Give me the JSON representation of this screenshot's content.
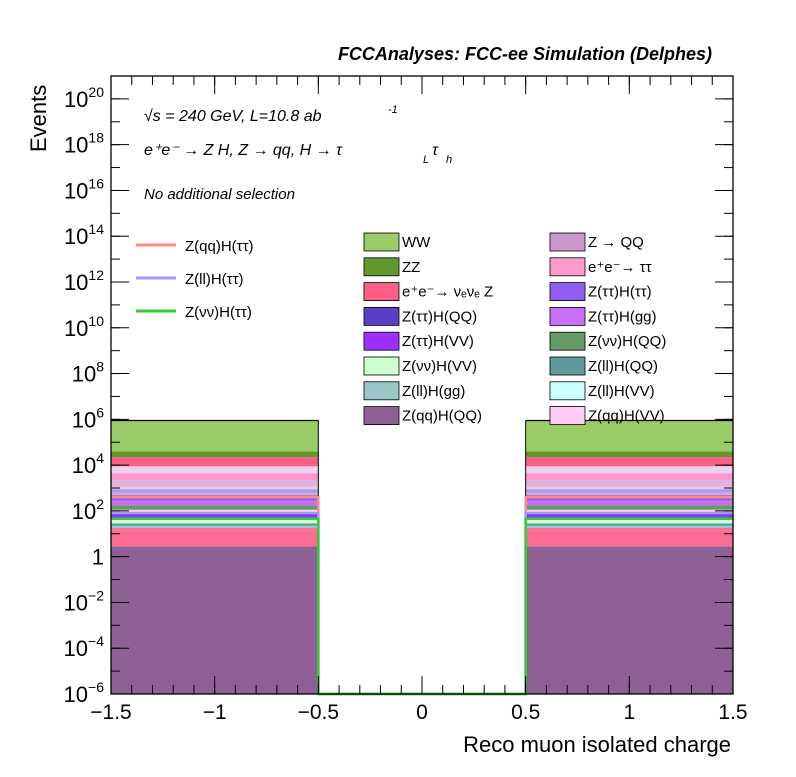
{
  "header": {
    "title": "FCCAnalyses: FCC-ee Simulation (Delphes)"
  },
  "annotations": {
    "energy_line": "√s = 240 GeV, L=10.8 ab",
    "energy_sup": "-1",
    "process": "e⁺e⁻ → Z H, Z → qq, H → τ",
    "process_sub1": "L",
    "process_tau": "τ",
    "process_sub2": "h",
    "selection": "No additional selection"
  },
  "chart_data": {
    "type": "histogram",
    "title": "",
    "xlabel": "Reco muon isolated charge",
    "ylabel": "Events",
    "x_range": [
      -1.5,
      1.5
    ],
    "y_range_log10": [
      -6,
      21
    ],
    "y_scale": "log",
    "x_ticks": [
      {
        "v": -1.5,
        "label": "−1.5"
      },
      {
        "v": -1,
        "label": "−1"
      },
      {
        "v": -0.5,
        "label": "−0.5"
      },
      {
        "v": 0,
        "label": "0"
      },
      {
        "v": 0.5,
        "label": "0.5"
      },
      {
        "v": 1,
        "label": "1"
      },
      {
        "v": 1.5,
        "label": "1.5"
      }
    ],
    "y_ticks": [
      {
        "e": -6,
        "base": "10",
        "sup": "−6"
      },
      {
        "e": -4,
        "base": "10",
        "sup": "−4"
      },
      {
        "e": -2,
        "base": "10",
        "sup": "−2"
      },
      {
        "e": 0,
        "base": "1",
        "sup": ""
      },
      {
        "e": 2,
        "base": "10",
        "sup": "2"
      },
      {
        "e": 4,
        "base": "10",
        "sup": "4"
      },
      {
        "e": 6,
        "base": "10",
        "sup": "6"
      },
      {
        "e": 8,
        "base": "10",
        "sup": "8"
      },
      {
        "e": 10,
        "base": "10",
        "sup": "10"
      },
      {
        "e": 12,
        "base": "10",
        "sup": "12"
      },
      {
        "e": 14,
        "base": "10",
        "sup": "14"
      },
      {
        "e": 16,
        "base": "10",
        "sup": "16"
      },
      {
        "e": 18,
        "base": "10",
        "sup": "18"
      },
      {
        "e": 20,
        "base": "10",
        "sup": "20"
      }
    ],
    "bins": [
      [
        -1.5,
        -0.5
      ],
      [
        -0.5,
        0.5
      ],
      [
        0.5,
        1.5
      ]
    ],
    "stack_boundaries_log10": [
      0.45,
      1.15,
      1.25,
      1.35,
      1.45,
      1.55,
      1.65,
      1.8,
      1.9,
      2.05,
      2.25,
      2.45,
      2.6,
      2.7,
      2.8,
      2.95,
      3.05,
      3.35,
      3.65,
      3.95,
      4.35,
      4.6,
      5.95
    ],
    "stack_colors": [
      "#8f6096",
      "#fb6c93",
      "#fc6998",
      "#9ac8c8",
      "#5f9a9a",
      "#ccffcc",
      "#e0fafa",
      "#9b30ff",
      "#5c3fc7",
      "#ffc8f5",
      "#649b64",
      "#c86ef7",
      "#8f5ef2",
      "#9f7fc8",
      "#e0a0d8",
      "#a0a0f0",
      "#ffc0e8",
      "#dcb4dc",
      "#ff99cc",
      "#f0d0f0",
      "#fc5f86",
      "#63982e",
      "#99cc66"
    ],
    "signal_lines": [
      {
        "name": "Z(qq)H(ττ)",
        "color": "#ff8a8a",
        "log10_values": [
          2.6,
          -6,
          2.6
        ]
      },
      {
        "name": "Z(ll)H(ττ)",
        "color": "#9999ff",
        "log10_values": [
          1.9,
          -6,
          1.9
        ]
      },
      {
        "name": "Z(νν)H(ττ)",
        "color": "#33cc33",
        "log10_values": [
          1.65,
          -6,
          1.65
        ]
      }
    ],
    "legend_left": [
      {
        "label": "Z(qq)H(ττ)",
        "color": "#ff8a8a"
      },
      {
        "label": "Z(ll)H(ττ)",
        "color": "#9999ff"
      },
      {
        "label": "Z(νν)H(ττ)",
        "color": "#33cc33"
      }
    ],
    "legend_mid": [
      {
        "label": "WW",
        "color": "#99cc66"
      },
      {
        "label": "ZZ",
        "color": "#63982e"
      },
      {
        "label": "e⁺e⁻→ νₑνₑ Z",
        "color": "#fc5f86"
      },
      {
        "label": "Z(ττ)H(QQ)",
        "color": "#5c3fc7"
      },
      {
        "label": "Z(ττ)H(VV)",
        "color": "#9b30ff"
      },
      {
        "label": "Z(νν)H(VV)",
        "color": "#ccffcc"
      },
      {
        "label": "Z(ll)H(gg)",
        "color": "#9ac8c8"
      },
      {
        "label": "Z(qq)H(QQ)",
        "color": "#8f6096"
      }
    ],
    "legend_right": [
      {
        "label": "Z → QQ",
        "color": "#cc99cc"
      },
      {
        "label": "e⁺e⁻→ ττ",
        "color": "#ff99cc"
      },
      {
        "label": "Z(ττ)H(ττ)",
        "color": "#8f5ef2"
      },
      {
        "label": "Z(ττ)H(gg)",
        "color": "#c86ef7"
      },
      {
        "label": "Z(νν)H(QQ)",
        "color": "#649b64"
      },
      {
        "label": "Z(ll)H(QQ)",
        "color": "#5f9a9a"
      },
      {
        "label": "Z(ll)H(VV)",
        "color": "#ccffff"
      },
      {
        "label": "Z(qq)H(VV)",
        "color": "#ffccf5"
      }
    ]
  }
}
